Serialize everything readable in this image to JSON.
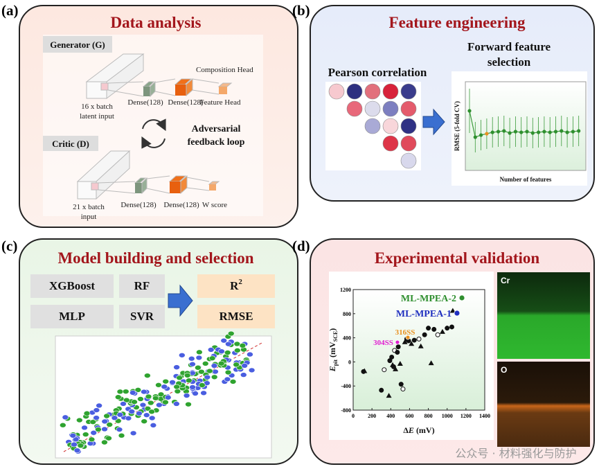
{
  "panels": [
    {
      "label": "(a)",
      "title": "Data analysis",
      "generator": "Generator (G)",
      "composition_head": "Composition Head",
      "gen_input": [
        "16 x batch",
        "latent input"
      ],
      "gen_layers": [
        "Dense(128)",
        "Dense(128)"
      ],
      "feature_head": "Feature Head",
      "loop": [
        "Adversarial",
        "feedback loop"
      ],
      "critic": "Critic (D)",
      "critic_input": [
        "21 x batch",
        "input"
      ],
      "critic_layers": [
        "Dense(128)",
        "Dense(128)"
      ],
      "w_score": "W score"
    },
    {
      "label": "(b)",
      "title": "Feature engineering",
      "pearson": "Pearson correlation",
      "forward": [
        "Forward feature",
        "selection"
      ],
      "ylabel": "RMSE (5-fold CV)",
      "xlabel": "Number of features"
    },
    {
      "label": "(c)",
      "title": "Model building and selection",
      "models": [
        "XGBoost",
        "RF",
        "MLP",
        "SVR"
      ],
      "r2": "R",
      "r2_sup": "2",
      "rmse": "RMSE"
    },
    {
      "label": "(d)",
      "title": "Experimental validation",
      "plot": {
        "ylabel": {
          "var": "E",
          "sub": "pit",
          "unit": " (mV",
          "unit_sub": "SCE",
          "close": ")"
        },
        "xlabel": {
          "delta": "Δ",
          "var": "E",
          "unit": " (mV)"
        },
        "xlim": [
          0,
          1400
        ],
        "ylim": [
          -800,
          1200
        ],
        "xticks": [
          0,
          200,
          400,
          600,
          800,
          1000,
          1200,
          1400
        ],
        "yticks": [
          -800,
          -400,
          0,
          400,
          800,
          1200
        ],
        "series": [
          {
            "name": "ML-MPEA-2",
            "color": "#2f8f2f",
            "x": [
              1157
            ],
            "y": [
              1062
            ]
          },
          {
            "name": "ML-MPEA-1",
            "color": "#1f2fbf",
            "x": [
              1105
            ],
            "y": [
              809
            ]
          },
          {
            "name": "316SS",
            "color": "#e8901f",
            "x": [
              582
            ],
            "y": [
              407
            ]
          },
          {
            "name": "304SS",
            "color": "#e020d0",
            "x": [
              471
            ],
            "y": [
              326
            ]
          }
        ],
        "points": {
          "color": "#111",
          "x": [
            110,
            120,
            300,
            330,
            380,
            390,
            410,
            420,
            430,
            440,
            450,
            470,
            480,
            500,
            510,
            530,
            550,
            570,
            590,
            620,
            650,
            700,
            720,
            760,
            800,
            830,
            860,
            900,
            950,
            1000,
            1050,
            1060
          ],
          "y": [
            -160,
            -150,
            -470,
            -130,
            -560,
            20,
            80,
            -50,
            -80,
            190,
            -120,
            160,
            250,
            -30,
            -370,
            -450,
            330,
            380,
            350,
            300,
            360,
            380,
            260,
            450,
            560,
            -20,
            540,
            450,
            500,
            560,
            580,
            850
          ]
        }
      }
    },
    {
      "maps": [
        "Cr",
        "O"
      ]
    }
  ],
  "watermark": "公众号 · 材料强化与防护"
}
